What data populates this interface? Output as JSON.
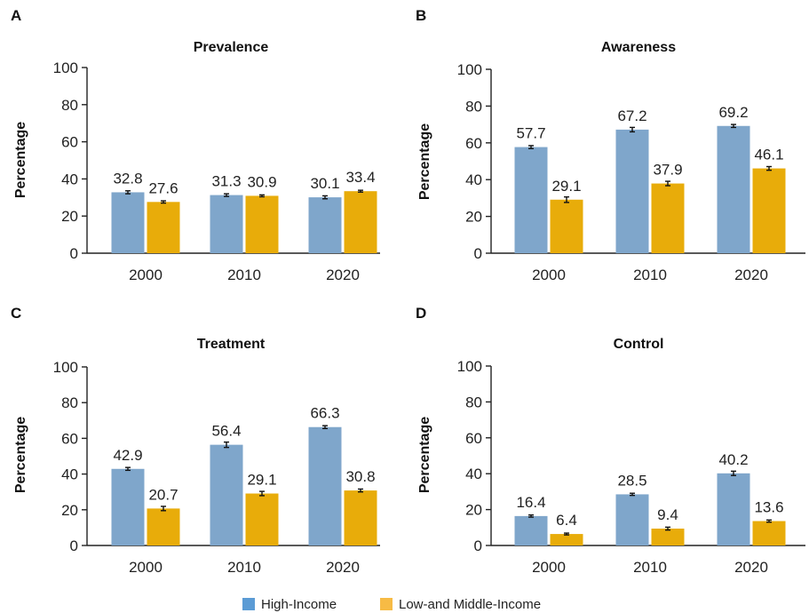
{
  "colors": {
    "high_income": "#7fa6cb",
    "low_middle_income": "#e8ac0a",
    "legend_high": "#5b9bd5",
    "legend_low": "#f7bb45",
    "axis": "#222222",
    "error_bar": "#111111"
  },
  "legend": {
    "items": [
      {
        "label": "High-Income",
        "color_key": "legend_high"
      },
      {
        "label": "Low-and Middle-Income",
        "color_key": "legend_low"
      }
    ],
    "placement": "bottom-center"
  },
  "chart_data": [
    {
      "panel": "A",
      "type": "bar",
      "title": "Prevalence",
      "ylabel": "Percentage",
      "xlabel": "",
      "ylim": [
        0,
        100
      ],
      "yticks": [
        0,
        20,
        40,
        60,
        80,
        100
      ],
      "categories": [
        "2000",
        "2010",
        "2020"
      ],
      "grid": false,
      "series": [
        {
          "name": "High-Income",
          "values": [
            32.8,
            31.3,
            30.1
          ],
          "errors": [
            0.8,
            0.7,
            0.8
          ]
        },
        {
          "name": "Low-and Middle-Income",
          "values": [
            27.6,
            30.9,
            33.4
          ],
          "errors": [
            0.6,
            0.5,
            0.5
          ]
        }
      ]
    },
    {
      "panel": "B",
      "type": "bar",
      "title": "Awareness",
      "ylabel": "Percentage",
      "xlabel": "",
      "ylim": [
        0,
        100
      ],
      "yticks": [
        0,
        20,
        40,
        60,
        80,
        100
      ],
      "categories": [
        "2000",
        "2010",
        "2020"
      ],
      "grid": false,
      "series": [
        {
          "name": "High-Income",
          "values": [
            57.7,
            67.2,
            69.2
          ],
          "errors": [
            0.8,
            1.2,
            0.8
          ]
        },
        {
          "name": "Low-and Middle-Income",
          "values": [
            29.1,
            37.9,
            46.1
          ],
          "errors": [
            1.5,
            1.2,
            1.0
          ]
        }
      ]
    },
    {
      "panel": "C",
      "type": "bar",
      "title": "Treatment",
      "ylabel": "Percentage",
      "xlabel": "",
      "ylim": [
        0,
        100
      ],
      "yticks": [
        0,
        20,
        40,
        60,
        80,
        100
      ],
      "categories": [
        "2000",
        "2010",
        "2020"
      ],
      "grid": false,
      "series": [
        {
          "name": "High-Income",
          "values": [
            42.9,
            56.4,
            66.3
          ],
          "errors": [
            0.8,
            1.5,
            0.8
          ]
        },
        {
          "name": "Low-and Middle-Income",
          "values": [
            20.7,
            29.1,
            30.8
          ],
          "errors": [
            1.2,
            1.2,
            0.8
          ]
        }
      ]
    },
    {
      "panel": "D",
      "type": "bar",
      "title": "Control",
      "ylabel": "Percentage",
      "xlabel": "",
      "ylim": [
        0,
        100
      ],
      "yticks": [
        0,
        20,
        40,
        60,
        80,
        100
      ],
      "categories": [
        "2000",
        "2010",
        "2020"
      ],
      "grid": false,
      "series": [
        {
          "name": "High-Income",
          "values": [
            16.4,
            28.5,
            40.2
          ],
          "errors": [
            0.6,
            0.6,
            1.2
          ]
        },
        {
          "name": "Low-and Middle-Income",
          "values": [
            6.4,
            9.4,
            13.6
          ],
          "errors": [
            0.5,
            0.8,
            0.6
          ]
        }
      ]
    }
  ]
}
